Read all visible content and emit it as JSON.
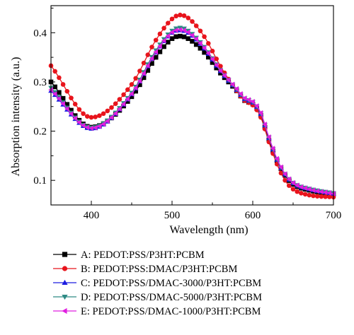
{
  "chart_data": {
    "type": "line",
    "xlabel": "Wavelength (nm)",
    "ylabel": "Absorption intensity (a.u.)",
    "xlim": [
      350,
      700
    ],
    "ylim": [
      0.05,
      0.455
    ],
    "xticks": [
      400,
      500,
      600,
      700
    ],
    "yticks": [
      0.1,
      0.2,
      0.3,
      0.4
    ],
    "xtick_labels": [
      "400",
      "500",
      "600",
      "700"
    ],
    "ytick_labels": [
      "0.1",
      "0.2",
      "0.3",
      "0.4"
    ],
    "grid": false,
    "legend_position": "below",
    "series": [
      {
        "name": "A: PEDOT:PSS/P3HT:PCBM",
        "color": "#000000",
        "marker": "square",
        "points": [
          [
            350,
            0.3
          ],
          [
            400,
            0.208
          ],
          [
            450,
            0.27
          ],
          [
            480,
            0.35
          ],
          [
            500,
            0.388
          ],
          [
            510,
            0.393
          ],
          [
            520,
            0.388
          ],
          [
            540,
            0.36
          ],
          [
            560,
            0.318
          ],
          [
            580,
            0.282
          ],
          [
            590,
            0.262
          ],
          [
            600,
            0.255
          ],
          [
            610,
            0.232
          ],
          [
            620,
            0.182
          ],
          [
            630,
            0.14
          ],
          [
            640,
            0.11
          ],
          [
            650,
            0.092
          ],
          [
            670,
            0.08
          ],
          [
            700,
            0.072
          ]
        ]
      },
      {
        "name": "B: PEDOT:PSS:DMAC/P3HT:PCBM",
        "color": "#e8141c",
        "marker": "circle",
        "points": [
          [
            350,
            0.333
          ],
          [
            400,
            0.228
          ],
          [
            450,
            0.295
          ],
          [
            480,
            0.385
          ],
          [
            500,
            0.428
          ],
          [
            510,
            0.436
          ],
          [
            520,
            0.43
          ],
          [
            540,
            0.392
          ],
          [
            560,
            0.332
          ],
          [
            580,
            0.282
          ],
          [
            590,
            0.262
          ],
          [
            600,
            0.253
          ],
          [
            610,
            0.228
          ],
          [
            620,
            0.178
          ],
          [
            630,
            0.133
          ],
          [
            640,
            0.1
          ],
          [
            650,
            0.082
          ],
          [
            670,
            0.07
          ],
          [
            700,
            0.066
          ]
        ]
      },
      {
        "name": "C: PEDOT:PSS/DMAC-3000/P3HT:PCBM",
        "color": "#1c1ce0",
        "marker": "triangle-up",
        "points": [
          [
            350,
            0.282
          ],
          [
            400,
            0.205
          ],
          [
            450,
            0.275
          ],
          [
            480,
            0.36
          ],
          [
            500,
            0.4
          ],
          [
            510,
            0.405
          ],
          [
            520,
            0.4
          ],
          [
            540,
            0.368
          ],
          [
            560,
            0.322
          ],
          [
            580,
            0.284
          ],
          [
            590,
            0.265
          ],
          [
            600,
            0.258
          ],
          [
            610,
            0.235
          ],
          [
            620,
            0.186
          ],
          [
            630,
            0.142
          ],
          [
            640,
            0.112
          ],
          [
            650,
            0.094
          ],
          [
            670,
            0.082
          ],
          [
            700,
            0.073
          ]
        ]
      },
      {
        "name": "D: PEDOT:PSS/DMAC-5000/P3HT:PCBM",
        "color": "#2e8a84",
        "marker": "triangle-down",
        "points": [
          [
            350,
            0.288
          ],
          [
            400,
            0.207
          ],
          [
            450,
            0.278
          ],
          [
            480,
            0.364
          ],
          [
            500,
            0.404
          ],
          [
            510,
            0.41
          ],
          [
            520,
            0.404
          ],
          [
            540,
            0.371
          ],
          [
            560,
            0.324
          ],
          [
            580,
            0.285
          ],
          [
            590,
            0.266
          ],
          [
            600,
            0.259
          ],
          [
            610,
            0.236
          ],
          [
            620,
            0.187
          ],
          [
            630,
            0.143
          ],
          [
            640,
            0.113
          ],
          [
            650,
            0.095
          ],
          [
            670,
            0.083
          ],
          [
            700,
            0.074
          ]
        ]
      },
      {
        "name": "E: PEDOT:PSS/DMAC-1000/P3HT:PCBM",
        "color": "#e01ee0",
        "marker": "triangle-left",
        "points": [
          [
            350,
            0.284
          ],
          [
            400,
            0.206
          ],
          [
            450,
            0.276
          ],
          [
            480,
            0.361
          ],
          [
            500,
            0.401
          ],
          [
            510,
            0.406
          ],
          [
            520,
            0.401
          ],
          [
            540,
            0.369
          ],
          [
            560,
            0.323
          ],
          [
            580,
            0.286
          ],
          [
            590,
            0.267
          ],
          [
            600,
            0.26
          ],
          [
            610,
            0.237
          ],
          [
            620,
            0.188
          ],
          [
            630,
            0.144
          ],
          [
            640,
            0.113
          ],
          [
            650,
            0.095
          ],
          [
            670,
            0.082
          ],
          [
            700,
            0.073
          ]
        ]
      }
    ]
  }
}
